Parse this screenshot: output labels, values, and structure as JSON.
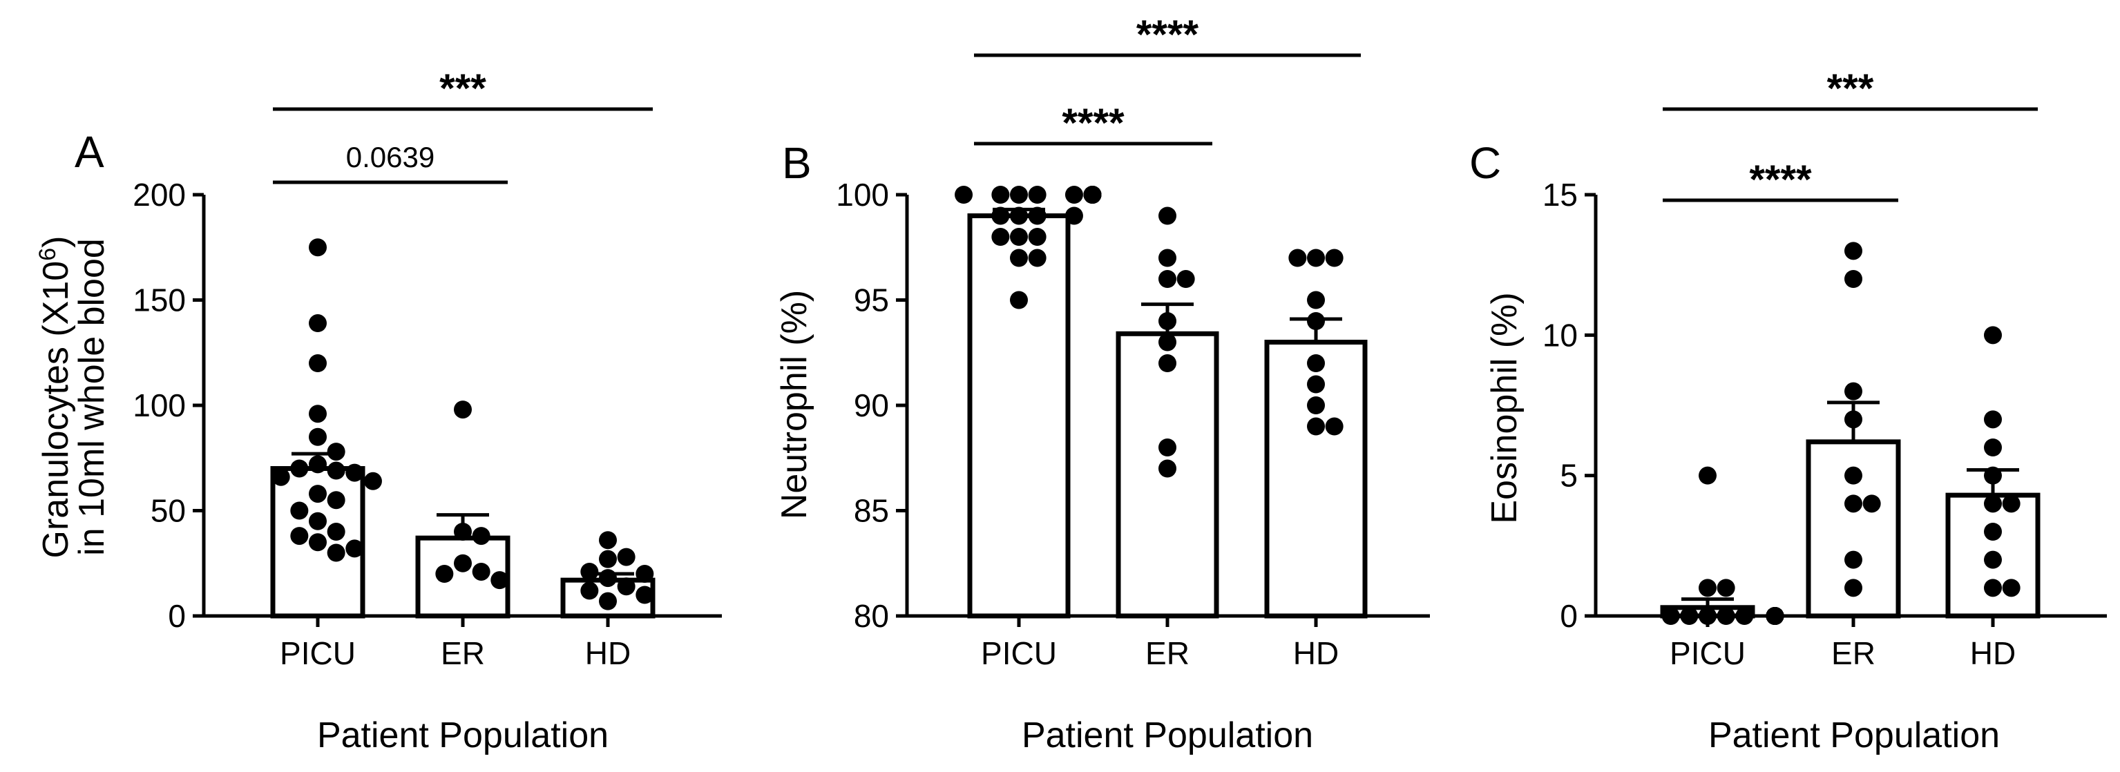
{
  "figure": {
    "panels": [
      {
        "letter": "A",
        "ylabel_main": "Granulocytes (X10",
        "ylabel_sup": "6",
        "ylabel_end": ")",
        "ylabel_line2": "in 10ml whole blood",
        "xlabel": "Patient Population"
      },
      {
        "letter": "B",
        "ylabel_main": "Neutrophil (%)",
        "xlabel": "Patient Population"
      },
      {
        "letter": "C",
        "ylabel_main": "Eosinophil (%)",
        "xlabel": "Patient Population"
      }
    ]
  },
  "chart_data": [
    {
      "type": "bar",
      "title": "A",
      "ylabel": "Granulocytes (X10^6) in 10ml whole blood",
      "xlabel": "Patient Population",
      "categories": [
        "PICU",
        "ER",
        "HD"
      ],
      "ylim": [
        0,
        200
      ],
      "yticks": [
        0,
        50,
        100,
        150,
        200
      ],
      "means": [
        70,
        37,
        17
      ],
      "sem": [
        7,
        11,
        3
      ],
      "points": [
        [
          175,
          139,
          120,
          96,
          85,
          78,
          72,
          70,
          69,
          68,
          66,
          64,
          58,
          55,
          50,
          45,
          40,
          38,
          35,
          32,
          30
        ],
        [
          98,
          40,
          38,
          25,
          21,
          20,
          17
        ],
        [
          36,
          28,
          27,
          21,
          20,
          18,
          14,
          12,
          10,
          7
        ]
      ],
      "comparisons": [
        {
          "from": 0,
          "to": 1,
          "label": "0.0639"
        },
        {
          "from": 0,
          "to": 2,
          "label": "***"
        }
      ]
    },
    {
      "type": "bar",
      "title": "B",
      "ylabel": "Neutrophil (%)",
      "xlabel": "Patient Population",
      "categories": [
        "PICU",
        "ER",
        "HD"
      ],
      "ylim": [
        80,
        100
      ],
      "yticks": [
        80,
        85,
        90,
        95,
        100
      ],
      "means": [
        99,
        93.4,
        93
      ],
      "sem": [
        0.3,
        1.4,
        1.1
      ],
      "points": [
        [
          100,
          100,
          100,
          100,
          100,
          100,
          100,
          100,
          100,
          100,
          100,
          99,
          99,
          99,
          99,
          98,
          98,
          98,
          97,
          97,
          95
        ],
        [
          99,
          97,
          96,
          96,
          94,
          93,
          92,
          88,
          87
        ],
        [
          97,
          97,
          97,
          95,
          94,
          92,
          91,
          90,
          89,
          89
        ]
      ],
      "comparisons": [
        {
          "from": 0,
          "to": 1,
          "label": "****"
        },
        {
          "from": 0,
          "to": 2,
          "label": "****"
        }
      ]
    },
    {
      "type": "bar",
      "title": "C",
      "ylabel": "Eosinophil (%)",
      "xlabel": "Patient Population",
      "categories": [
        "PICU",
        "ER",
        "HD"
      ],
      "ylim": [
        0,
        15
      ],
      "yticks": [
        0,
        5,
        10,
        15
      ],
      "means": [
        0.3,
        6.2,
        4.3
      ],
      "sem": [
        0.3,
        1.4,
        0.9
      ],
      "points": [
        [
          5,
          1,
          1,
          0,
          0,
          0,
          0,
          0,
          0,
          0,
          0,
          0,
          0,
          0,
          0,
          0,
          0,
          0,
          0,
          0,
          0
        ],
        [
          13,
          12,
          8,
          7,
          5,
          4,
          4,
          2,
          1
        ],
        [
          10,
          7,
          6,
          5,
          4,
          4,
          3,
          2,
          1,
          1
        ]
      ],
      "comparisons": [
        {
          "from": 0,
          "to": 1,
          "label": "****"
        },
        {
          "from": 0,
          "to": 2,
          "label": "***"
        }
      ]
    }
  ]
}
